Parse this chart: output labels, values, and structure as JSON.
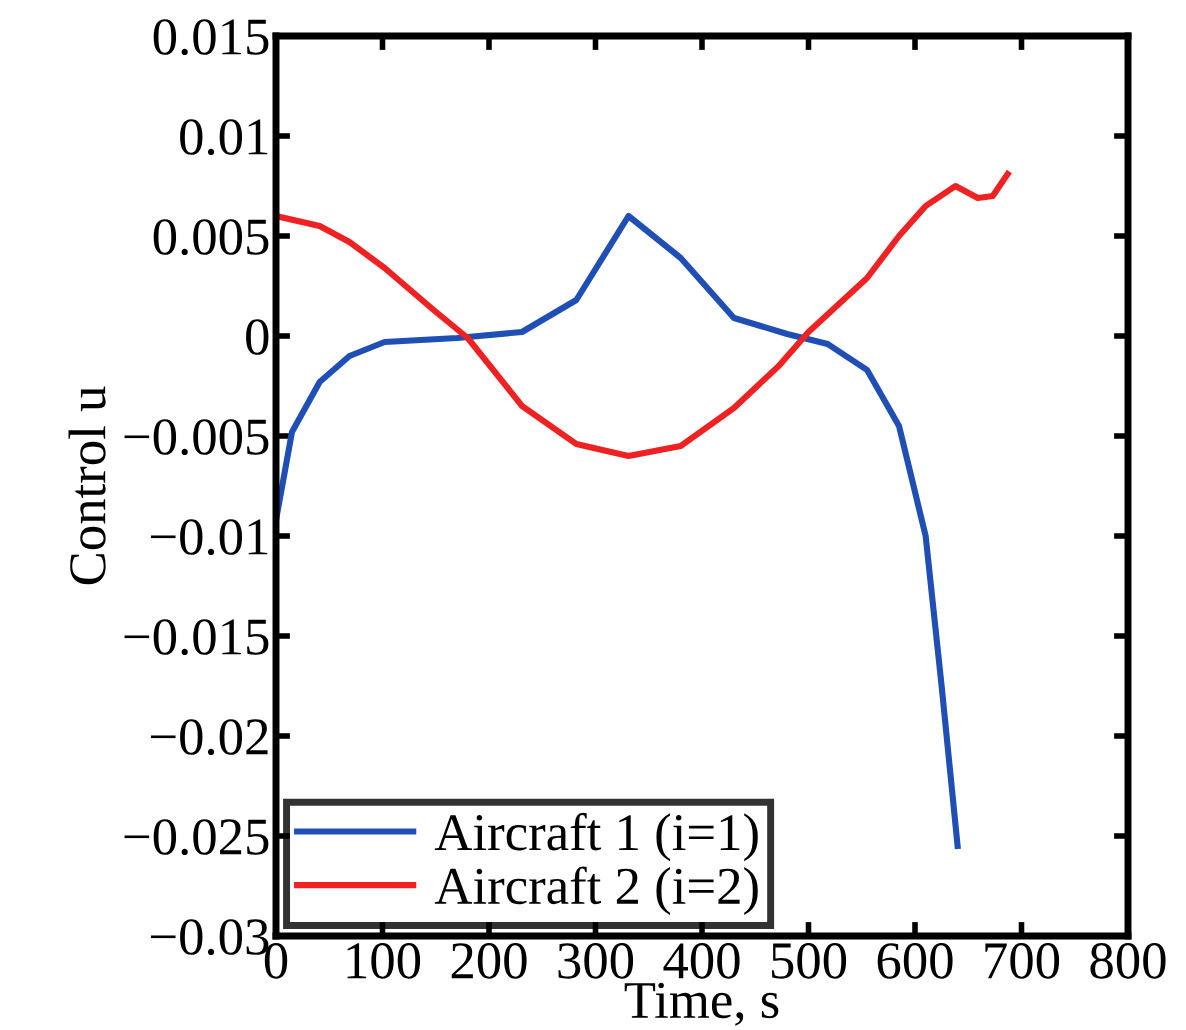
{
  "chart_data": {
    "type": "line",
    "xlabel": "Time, s",
    "ylabel": "Control u",
    "xlim": [
      0,
      800
    ],
    "xticks": [
      0,
      100,
      200,
      300,
      400,
      500,
      600,
      700,
      800
    ],
    "ylim": [
      -0.03,
      0.015
    ],
    "yticks": [
      {
        "value": -0.03,
        "label": "−0.03"
      },
      {
        "value": -0.025,
        "label": "−0.025"
      },
      {
        "value": -0.02,
        "label": "−0.02"
      },
      {
        "value": -0.015,
        "label": "−0.015"
      },
      {
        "value": -0.01,
        "label": "−0.01"
      },
      {
        "value": -0.005,
        "label": "−0.005"
      },
      0,
      0.005,
      0.01,
      0.015
    ],
    "grid": false,
    "legend": "bottom left",
    "line_style": "solid",
    "marker": "none",
    "series": [
      {
        "name": "Aircraft 1 (i=1)",
        "color": "#1f4fb4",
        "x": [
          0,
          15,
          41,
          69,
          102,
          170,
          231,
          282,
          331,
          380,
          430,
          480,
          518,
          555,
          585,
          610,
          625,
          640
        ],
        "values": [
          -0.0092,
          -0.0048,
          -0.0023,
          -0.001,
          -0.0003,
          -0.0001,
          0.0002,
          0.0018,
          0.006,
          0.0039,
          0.0009,
          0.0001,
          -0.0004,
          -0.0017,
          -0.0045,
          -0.01,
          -0.0175,
          -0.0255
        ]
      },
      {
        "name": "Aircraft 2 (i=2)",
        "color": "#ee2222",
        "x": [
          0,
          41,
          69,
          102,
          148,
          180,
          231,
          282,
          331,
          380,
          430,
          472,
          500,
          555,
          585,
          610,
          638,
          659,
          673,
          687
        ],
        "values": [
          0.006,
          0.0055,
          0.0047,
          0.0034,
          0.0013,
          -0.0001,
          -0.0035,
          -0.0054,
          -0.006,
          -0.0055,
          -0.0036,
          -0.0015,
          0.0002,
          0.0029,
          0.005,
          0.0065,
          0.0075,
          0.0069,
          0.007,
          0.0081
        ]
      }
    ]
  }
}
